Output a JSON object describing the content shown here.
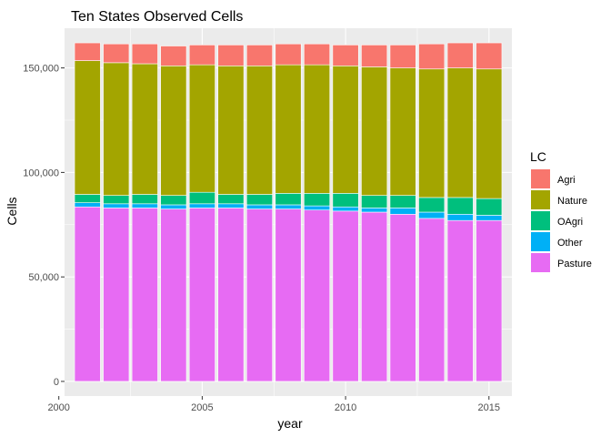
{
  "chart_data": {
    "type": "bar",
    "stacked": true,
    "title": "Ten States Observed Cells",
    "xlabel": "year",
    "ylabel": "Cells",
    "x": [
      2001,
      2002,
      2003,
      2004,
      2005,
      2006,
      2007,
      2008,
      2009,
      2010,
      2011,
      2012,
      2013,
      2014,
      2015
    ],
    "xlim": [
      2000.2,
      2015.8
    ],
    "x_ticks": [
      2000,
      2005,
      2010,
      2015
    ],
    "x_tick_labels": [
      "2000",
      "2005",
      "2010",
      "2015"
    ],
    "ylim": [
      -7000,
      169000
    ],
    "y_ticks": [
      0,
      50000,
      100000,
      150000
    ],
    "y_tick_labels": [
      "0",
      "50,000",
      "100,000",
      "150,000"
    ],
    "grid": true,
    "legend_position": "right",
    "legend_title": "LC",
    "stack_order_bottom_to_top": [
      "Pasture",
      "Other",
      "OAgri",
      "Nature",
      "Agri"
    ],
    "series": [
      {
        "name": "Agri",
        "color": "#F8766D",
        "values": [
          8500,
          9000,
          9500,
          9500,
          9500,
          10000,
          10000,
          10000,
          10000,
          10000,
          10500,
          11000,
          12000,
          12000,
          12500
        ]
      },
      {
        "name": "Nature",
        "color": "#A3A500",
        "values": [
          64000,
          63500,
          62500,
          62000,
          61000,
          61500,
          61500,
          61500,
          61500,
          61000,
          61500,
          61000,
          61500,
          62000,
          62000
        ]
      },
      {
        "name": "OAgri",
        "color": "#00BF7D",
        "values": [
          4000,
          4000,
          4500,
          4500,
          5500,
          4500,
          5000,
          5500,
          6000,
          6500,
          6000,
          6000,
          7000,
          8000,
          8000
        ]
      },
      {
        "name": "Other",
        "color": "#00B0F6",
        "values": [
          2000,
          2000,
          2000,
          2000,
          2000,
          2000,
          2000,
          2000,
          2000,
          2000,
          2000,
          3000,
          3000,
          3000,
          2500
        ]
      },
      {
        "name": "Pasture",
        "color": "#E76BF3",
        "values": [
          83500,
          83000,
          83000,
          82500,
          83000,
          83000,
          82500,
          82500,
          82000,
          81500,
          81000,
          80000,
          78000,
          77000,
          77000
        ]
      }
    ]
  }
}
